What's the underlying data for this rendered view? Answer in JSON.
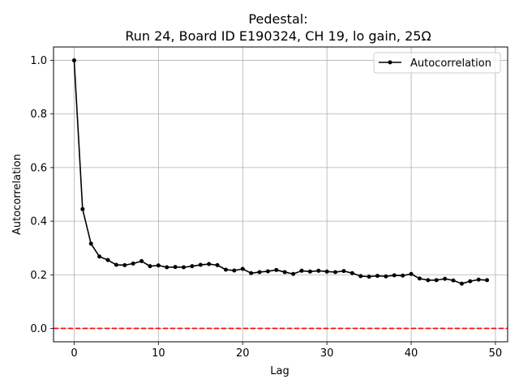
{
  "chart_data": {
    "type": "line",
    "title_line1": "Pedestal:",
    "title_line2": "Run 24, Board ID E190324, CH 19, lo gain, 25Ω",
    "xlabel": "Lag",
    "ylabel": "Autocorrelation",
    "xlim": [
      -2.45,
      51.45
    ],
    "ylim": [
      -0.05,
      1.05
    ],
    "xticks": [
      0,
      10,
      20,
      30,
      40,
      50
    ],
    "yticks": [
      0.0,
      0.2,
      0.4,
      0.6,
      0.8,
      1.0
    ],
    "xtick_labels": [
      "0",
      "10",
      "20",
      "30",
      "40",
      "50"
    ],
    "ytick_labels": [
      "0.0",
      "0.2",
      "0.4",
      "0.6",
      "0.8",
      "1.0"
    ],
    "grid": true,
    "legend_position": "top-right",
    "reference_line": {
      "y": 0.0,
      "color": "#ff0000",
      "style": "dashed"
    },
    "series": [
      {
        "name": "Autocorrelation",
        "color": "#000000",
        "marker": "circle",
        "x": [
          0,
          1,
          2,
          3,
          4,
          5,
          6,
          7,
          8,
          9,
          10,
          11,
          12,
          13,
          14,
          15,
          16,
          17,
          18,
          19,
          20,
          21,
          22,
          23,
          24,
          25,
          26,
          27,
          28,
          29,
          30,
          31,
          32,
          33,
          34,
          35,
          36,
          37,
          38,
          39,
          40,
          41,
          42,
          43,
          44,
          45,
          46,
          47,
          48,
          49
        ],
        "y": [
          1.0,
          0.445,
          0.316,
          0.268,
          0.255,
          0.237,
          0.236,
          0.242,
          0.251,
          0.232,
          0.235,
          0.228,
          0.229,
          0.228,
          0.232,
          0.237,
          0.24,
          0.236,
          0.219,
          0.216,
          0.222,
          0.206,
          0.21,
          0.213,
          0.218,
          0.21,
          0.203,
          0.215,
          0.212,
          0.215,
          0.212,
          0.21,
          0.214,
          0.206,
          0.195,
          0.193,
          0.196,
          0.194,
          0.198,
          0.197,
          0.203,
          0.186,
          0.18,
          0.18,
          0.185,
          0.179,
          0.167,
          0.176,
          0.182,
          0.18
        ]
      }
    ]
  }
}
